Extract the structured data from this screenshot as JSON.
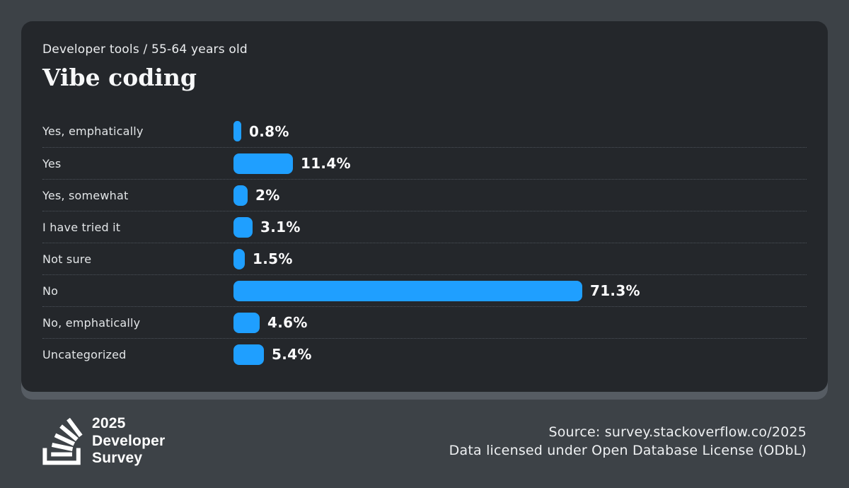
{
  "chart_data": {
    "type": "bar",
    "orientation": "horizontal",
    "subtitle": "Developer tools / 55-64 years old",
    "title": "Vibe coding",
    "categories": [
      "Yes, emphatically",
      "Yes",
      "Yes, somewhat",
      "I have tried it",
      "Not sure",
      "No",
      "No, emphatically",
      "Uncategorized"
    ],
    "values": [
      0.8,
      11.4,
      2,
      3.1,
      1.5,
      71.3,
      4.6,
      5.4
    ],
    "value_labels": [
      "0.8%",
      "11.4%",
      "2%",
      "3.1%",
      "1.5%",
      "71.3%",
      "4.6%",
      "5.4%"
    ],
    "value_suffix": "%",
    "xlim": [
      0,
      75
    ],
    "grid": false,
    "legend": false,
    "bar_color": "#1f9fff"
  },
  "footer": {
    "brand": {
      "icon": "stackoverflow-logo",
      "lines": [
        "2025",
        "Developer",
        "Survey"
      ]
    },
    "source_lines": [
      "Source: survey.stackoverflow.co/2025",
      "Data licensed under Open Database License (ODbL)"
    ]
  },
  "colors": {
    "page_bg": "#3d4247",
    "card_bg": "#24272b",
    "card_under_layer": "#565c63",
    "bar": "#1f9fff",
    "separator": "#4c525a",
    "category_label": "#e3e6e8",
    "value_label": "#fbfbfc",
    "text": "#eef0f2"
  }
}
